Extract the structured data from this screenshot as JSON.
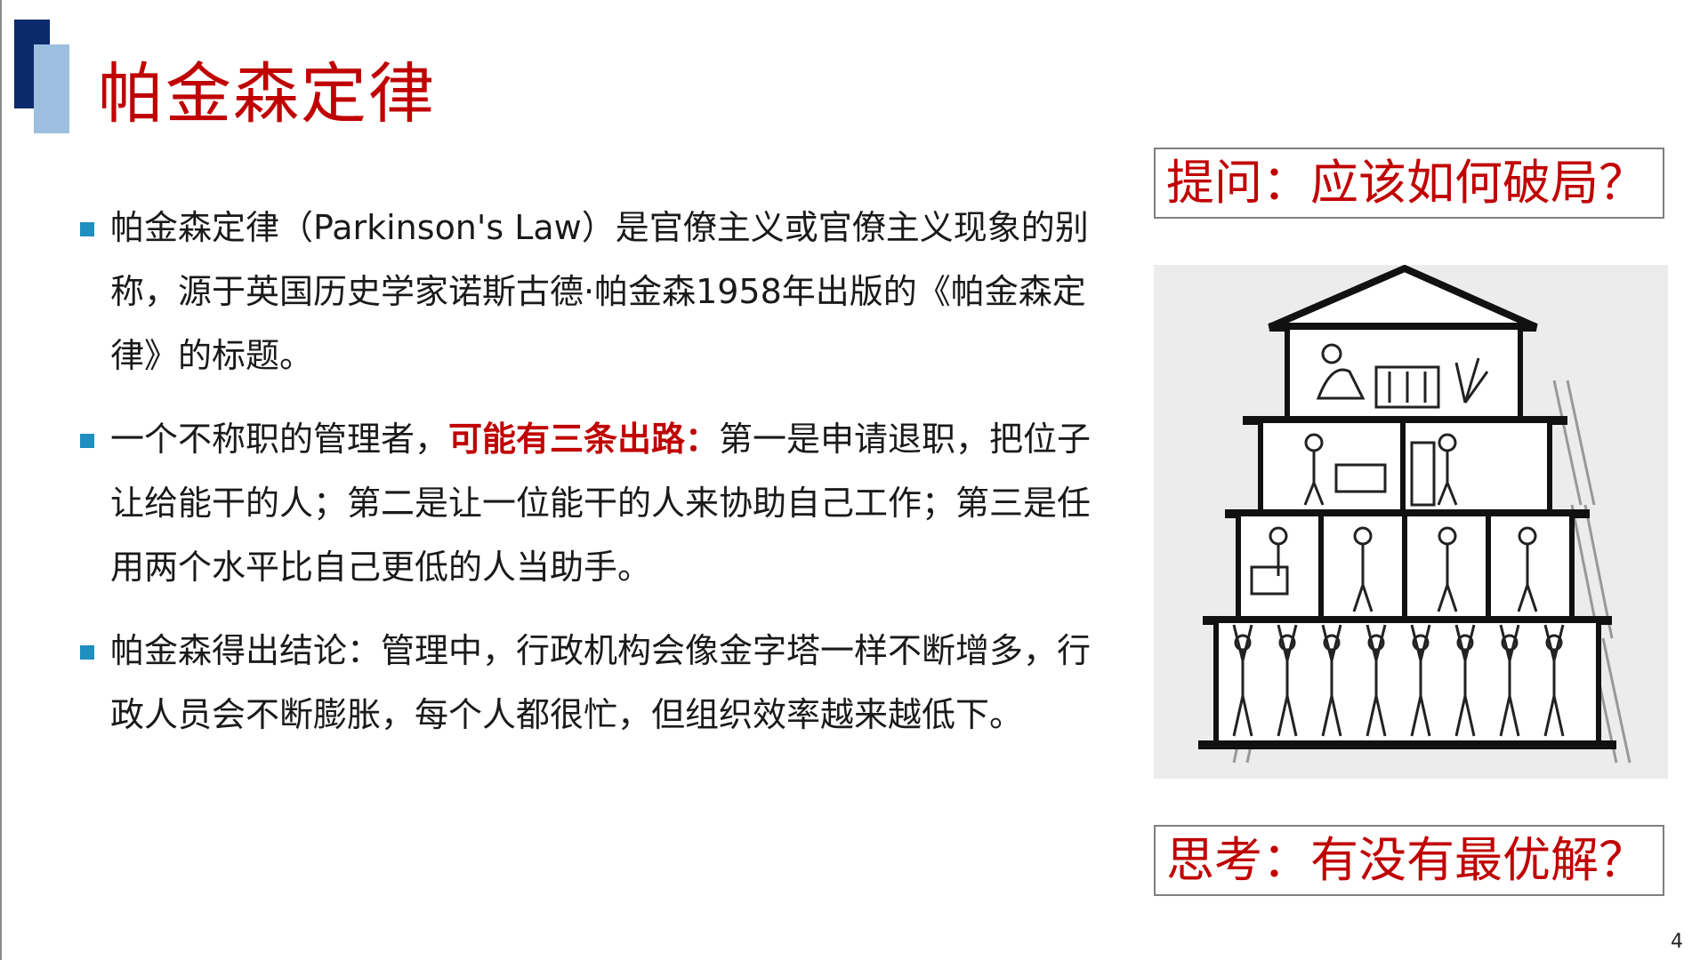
{
  "slide": {
    "title": "帕金森定律",
    "page_number": "4",
    "bullets": [
      {
        "text": "帕金森定律（Parkinson's Law）是官僚主义或官僚主义现象的别称，源于英国历史学家诺斯古德·帕金森1958年出版的《帕金森定律》的标题。"
      },
      {
        "before": "一个不称职的管理者，",
        "highlight": "可能有三条出路：",
        "after": "第一是申请退职，把位子让给能干的人；第二是让一位能干的人来协助自己工作；第三是任用两个水平比自己更低的人当助手。"
      },
      {
        "text": "帕金森得出结论：管理中，行政机构会像金字塔一样不断增多，行政人员会不断膨胀，每个人都很忙，但组织效率越来越低下。"
      }
    ],
    "callouts": {
      "question": "提问：应该如何破局？",
      "thinking": "思考：有没有最优解？"
    }
  },
  "colors": {
    "title_red": "#c00000",
    "accent_navy": "#0b2a6b",
    "accent_light_blue": "#9dbfe0",
    "bullet_teal": "#1f8ec0"
  },
  "illustration": {
    "icon": "bureaucracy-pyramid-cartoon-icon"
  }
}
